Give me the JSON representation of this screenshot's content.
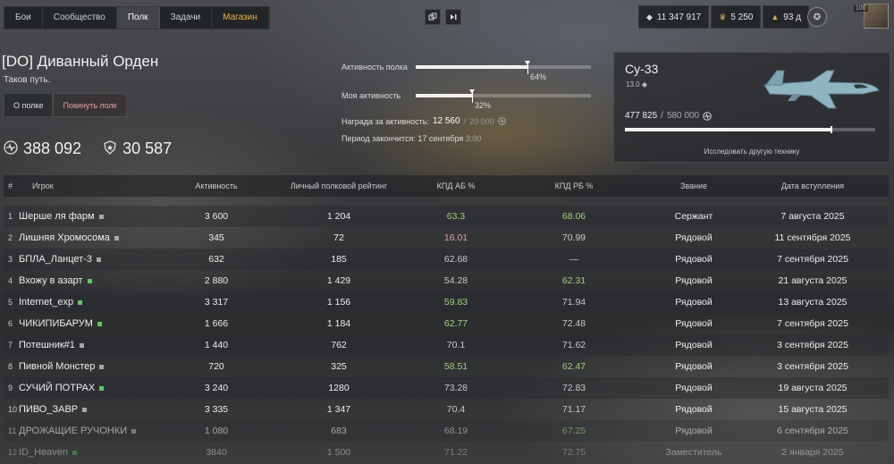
{
  "nav": {
    "tabs": [
      {
        "label": "Бои"
      },
      {
        "label": "Сообщество"
      },
      {
        "label": "Полк"
      },
      {
        "label": "Задачи"
      },
      {
        "label": "Магазин"
      }
    ]
  },
  "resources": {
    "silver": "11 347 917",
    "gold": "5 250",
    "premium": "93 д",
    "level": "100"
  },
  "regiment": {
    "name": "[DO] Диванный Орден",
    "motto": "Таков путь.",
    "about_button": "О полке",
    "leave_button": "Покинуть полк",
    "rating": "388 092",
    "members_score": "30 587"
  },
  "activity": {
    "regiment_label": "Активность полка",
    "regiment_pct": "64%",
    "regiment_value": 0.64,
    "my_label": "Моя активность",
    "my_pct": "32%",
    "my_value": 0.32,
    "reward_label": "Награда за активность:",
    "reward_current": "12 560",
    "reward_sep": "/",
    "reward_max": "20 000",
    "period_label": "Период закончится: 17 сентября",
    "period_time": "3:00"
  },
  "vehicle": {
    "name": "Су-33",
    "br": "13.0",
    "exp_current": "477 825",
    "exp_sep": "/",
    "exp_max": "580 000",
    "progress": 0.82,
    "research_link": "Исследовать другую технику"
  },
  "table": {
    "headers": {
      "num": "#",
      "player": "Игрок",
      "activity": "Активность",
      "personal": "Личный полковой рейтинг",
      "ab": "КПД АБ %",
      "rb": "КПД РБ %",
      "rank": "Звание",
      "date": "Дата вступления"
    },
    "rows": [
      {
        "n": "1",
        "name": "Шерше ля фарм",
        "status": "grey",
        "act": "3 600",
        "pers": "1 204",
        "ab": "63.3",
        "ab_c": "green",
        "rb": "68.06",
        "rb_c": "green",
        "rank": "Сержант",
        "date": "7 августа 2025"
      },
      {
        "n": "2",
        "name": "Лишняя Хромосома",
        "status": "grey",
        "act": "345",
        "pers": "72",
        "ab": "16.01",
        "ab_c": "red",
        "rb": "70.99",
        "rb_c": "greytxt",
        "rank": "Рядовой",
        "date": "11 сентября 2025"
      },
      {
        "n": "3",
        "name": "БПЛА_Ланцет-3",
        "status": "grey",
        "act": "632",
        "pers": "185",
        "ab": "62.68",
        "ab_c": "greytxt",
        "rb": "—",
        "rb_c": "greytxt",
        "rank": "Рядовой",
        "date": "7 сентября 2025"
      },
      {
        "n": "4",
        "name": "Вхожу в азарт",
        "status": "green",
        "act": "2 880",
        "pers": "1 429",
        "ab": "54.28",
        "ab_c": "greytxt",
        "rb": "62.31",
        "rb_c": "green",
        "rank": "Рядовой",
        "date": "21 августа 2025"
      },
      {
        "n": "5",
        "name": "Internet_exp",
        "status": "green",
        "act": "3 317",
        "pers": "1 156",
        "ab": "59.83",
        "ab_c": "green",
        "rb": "71.94",
        "rb_c": "greytxt",
        "rank": "Рядовой",
        "date": "13 августа 2025"
      },
      {
        "n": "6",
        "name": "ЧИКИПИБАРУМ",
        "status": "green",
        "act": "1 666",
        "pers": "1 184",
        "ab": "62.77",
        "ab_c": "green",
        "rb": "72.48",
        "rb_c": "greytxt",
        "rank": "Рядовой",
        "date": "7 сентября 2025"
      },
      {
        "n": "7",
        "name": "Потешник#1",
        "status": "grey",
        "act": "1 440",
        "pers": "762",
        "ab": "70.1",
        "ab_c": "greytxt",
        "rb": "71.62",
        "rb_c": "greytxt",
        "rank": "Рядовой",
        "date": "3 сентября 2025"
      },
      {
        "n": "8",
        "name": "Пивной Монстер",
        "status": "grey",
        "act": "720",
        "pers": "325",
        "ab": "58.51",
        "ab_c": "green",
        "rb": "62.47",
        "rb_c": "green",
        "rank": "Рядовой",
        "date": "3 сентября 2025"
      },
      {
        "n": "9",
        "name": "СУЧИЙ ПОТРАХ",
        "status": "green",
        "act": "3 240",
        "pers": "1280",
        "ab": "73.28",
        "ab_c": "greytxt",
        "rb": "72.83",
        "rb_c": "greytxt",
        "rank": "Рядовой",
        "date": "19 августа 2025"
      },
      {
        "n": "10",
        "name": "ПИВО_ЗАВР",
        "status": "grey",
        "act": "3 335",
        "pers": "1 347",
        "ab": "70.4",
        "ab_c": "greytxt",
        "rb": "71.17",
        "rb_c": "greytxt",
        "rank": "Рядовой",
        "date": "15 августа 2025"
      },
      {
        "n": "11",
        "name": "ДРОЖАЩИЕ РУЧОНКИ",
        "status": "grey",
        "act": "1 080",
        "pers": "683",
        "ab": "68.19",
        "ab_c": "greytxt",
        "rb": "67.25",
        "rb_c": "green",
        "rank": "Рядовой",
        "date": "6 сентября 2025"
      },
      {
        "n": "12",
        "name": "ID_Heaven",
        "status": "green",
        "act": "3840",
        "pers": "1 500",
        "ab": "71.22",
        "ab_c": "greytxt",
        "rb": "72.75",
        "rb_c": "greytxt",
        "rank": "Заместитель",
        "date": "2 января 2025"
      }
    ]
  }
}
